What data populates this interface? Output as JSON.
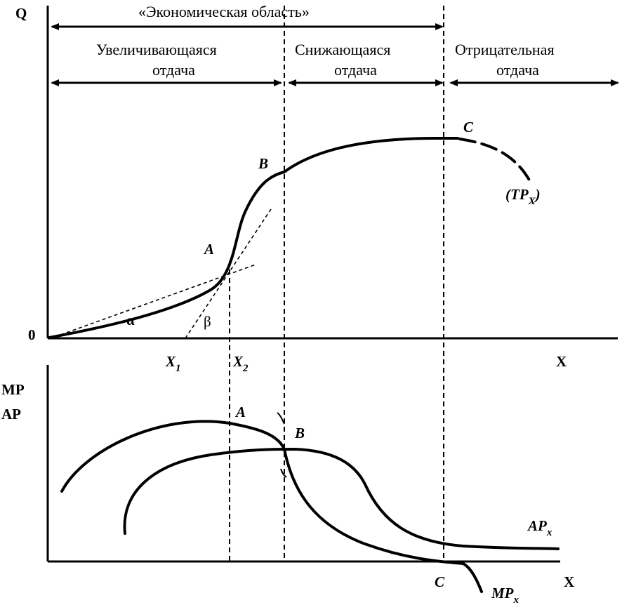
{
  "top_chart": {
    "y_axis_label": "Q",
    "x_axis_label": "X",
    "origin_label": "0",
    "economic_region_label": "«Экономическая область»",
    "zones": [
      {
        "line1": "Увеличивающаяся",
        "line2": "отдача"
      },
      {
        "line1": "Снижающаяся",
        "line2": "отдача"
      },
      {
        "line1": "Отрицательная",
        "line2": "отдача"
      }
    ],
    "points": {
      "a": "A",
      "b": "B",
      "c": "C"
    },
    "curve_label": "(TP",
    "curve_label_sub": "X",
    "curve_label_close": ")",
    "angle_alpha": "α",
    "angle_beta": "β",
    "x_ticks": [
      {
        "base": "X",
        "sub": "1"
      },
      {
        "base": "X",
        "sub": "2"
      }
    ]
  },
  "bottom_chart": {
    "y_axis_label_line1": "MP",
    "y_axis_label_line2": "AP",
    "x_axis_label": "X",
    "points": {
      "a": "A",
      "b": "B",
      "c": "C"
    },
    "ap_label": "AP",
    "ap_sub": "x",
    "mp_label": "MP",
    "mp_sub": "x"
  }
}
